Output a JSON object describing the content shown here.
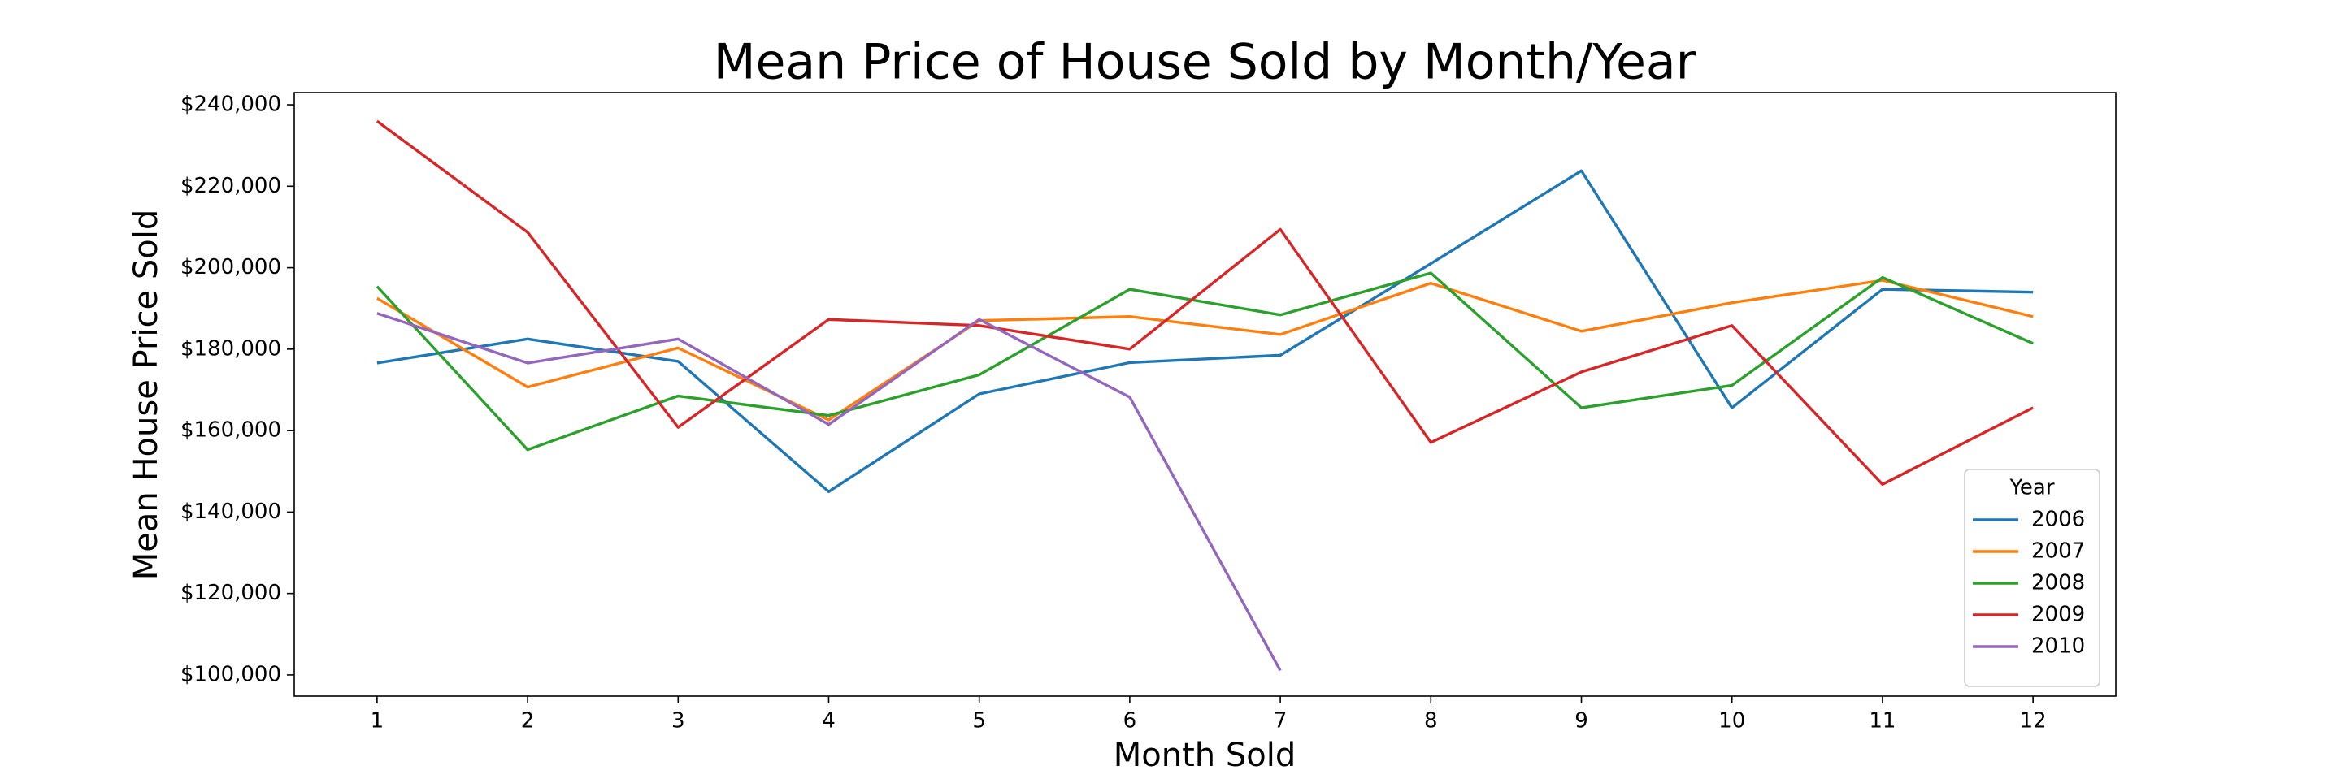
{
  "chart_data": {
    "type": "line",
    "title": "Mean Price of House Sold by Month/Year",
    "x_label": "Month Sold",
    "y_label": "Mean House Price Sold",
    "legend_title": "Year",
    "legend_position": "lower right",
    "x": [
      1,
      2,
      3,
      4,
      5,
      6,
      7,
      8,
      9,
      10,
      11,
      12
    ],
    "xlim": [
      0.45,
      12.55
    ],
    "xticks": [
      1,
      2,
      3,
      4,
      5,
      6,
      7,
      8,
      9,
      10,
      11,
      12
    ],
    "ylim": [
      94800,
      243000
    ],
    "yticks": [
      {
        "value": 100000,
        "label": "$100,000"
      },
      {
        "value": 120000,
        "label": "$120,000"
      },
      {
        "value": 140000,
        "label": "$140,000"
      },
      {
        "value": 160000,
        "label": "$160,000"
      },
      {
        "value": 180000,
        "label": "$180,000"
      },
      {
        "value": 200000,
        "label": "$200,000"
      },
      {
        "value": 220000,
        "label": "$220,000"
      },
      {
        "value": 240000,
        "label": "$240,000"
      }
    ],
    "series": [
      {
        "name": "2006",
        "color": "#1f77b4",
        "values": [
          176600,
          182500,
          177000,
          145000,
          169000,
          176700,
          178500,
          201000,
          223800,
          165600,
          194700,
          194000
        ]
      },
      {
        "name": "2007",
        "color": "#ff7f0e",
        "values": [
          192500,
          170700,
          180300,
          162600,
          187000,
          188000,
          183600,
          196200,
          184400,
          191400,
          196900,
          188000
        ]
      },
      {
        "name": "2008",
        "color": "#2ca02c",
        "values": [
          195400,
          155300,
          168500,
          163700,
          173700,
          194700,
          188400,
          198700,
          165600,
          171100,
          197600,
          181400
        ]
      },
      {
        "name": "2009",
        "color": "#d62728",
        "values": [
          236000,
          208700,
          160800,
          187300,
          185800,
          180000,
          209400,
          157100,
          174400,
          185800,
          146800,
          165600
        ]
      },
      {
        "name": "2010",
        "color": "#9467bd",
        "values": [
          188800,
          176600,
          182500,
          161500,
          187300,
          168200,
          101100,
          null,
          null,
          null,
          null,
          null
        ]
      }
    ]
  }
}
